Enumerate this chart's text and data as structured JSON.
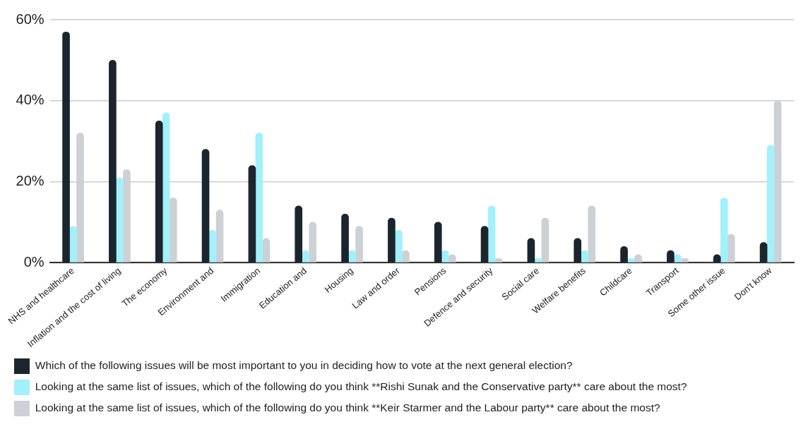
{
  "chart_data": {
    "type": "bar",
    "categories": [
      "NHS and healthcare",
      "Inflation and the cost of living",
      "The economy",
      "Environment and",
      "Immigration",
      "Education and",
      "Housing",
      "Law and order",
      "Pensions",
      "Defence and security",
      "Social care",
      "Welfare benefits",
      "Childcare",
      "Transport",
      "Some other issue",
      "Don't know"
    ],
    "series": [
      {
        "name": "Which of the following issues will be most important to you in deciding how to vote at the next general election?",
        "color": "#1b252e",
        "values": [
          57,
          50,
          35,
          28,
          24,
          14,
          12,
          11,
          10,
          9,
          6,
          6,
          4,
          3,
          2,
          5
        ]
      },
      {
        "name": "Looking at the same list of issues, which of the following do you think **Rishi Sunak and the Conservative party** care about the most?",
        "color": "#a3f0fb",
        "values": [
          9,
          21,
          37,
          8,
          32,
          3,
          3,
          8,
          3,
          14,
          1,
          3,
          1,
          2,
          16,
          29
        ]
      },
      {
        "name": "Looking at the same list of issues, which of the following do you think **Keir Starmer and the Labour party** care about the most?",
        "color": "#cdd0d4",
        "values": [
          32,
          23,
          16,
          13,
          6,
          10,
          9,
          3,
          2,
          1,
          11,
          14,
          2,
          1,
          7,
          40
        ]
      }
    ],
    "ylim": [
      0,
      60
    ],
    "yticks": [
      {
        "value": 0,
        "label": "0%"
      },
      {
        "value": 20,
        "label": "20%"
      },
      {
        "value": 40,
        "label": "40%"
      },
      {
        "value": 60,
        "label": "60%"
      }
    ],
    "grid": "y",
    "legend": "bottom"
  }
}
